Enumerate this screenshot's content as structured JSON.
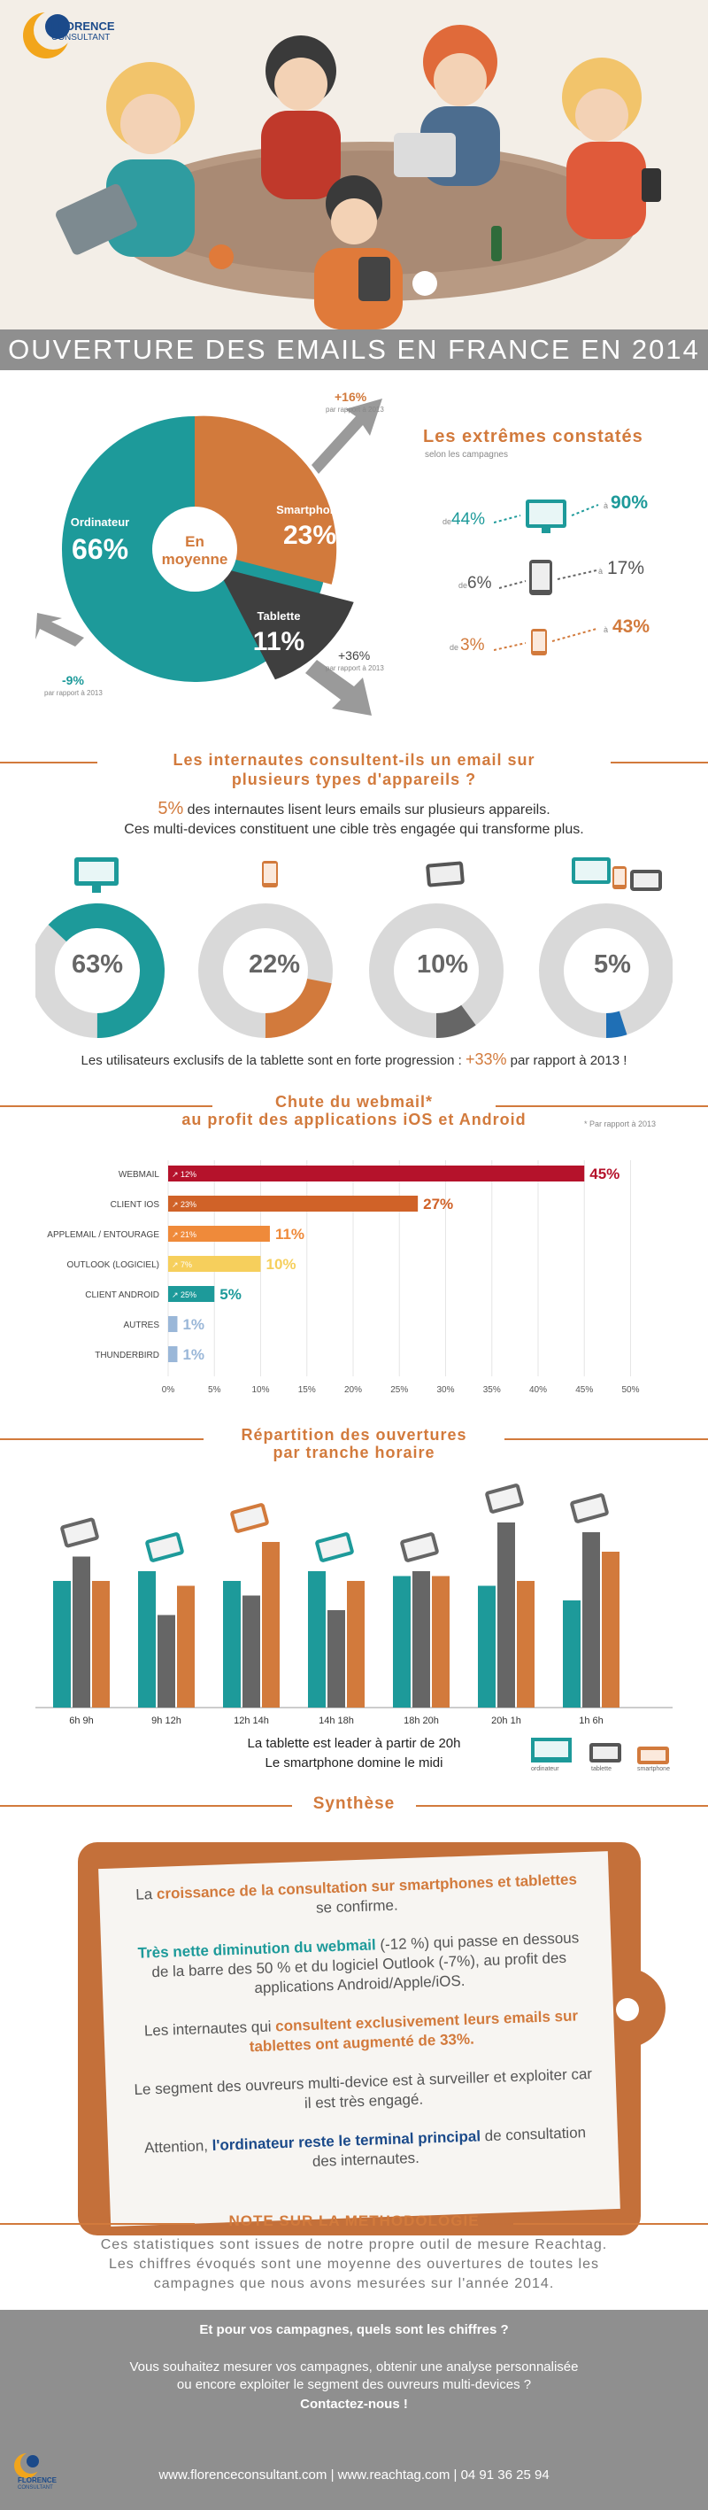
{
  "brand": {
    "name_line1": "FLORENCE",
    "name_line2": "CONSULTANT"
  },
  "title": "OUVERTURE DES EMAILS EN FRANCE EN 2014",
  "pie": {
    "center_line1": "En",
    "center_line2": "moyenne",
    "ordinateur": {
      "label": "Ordinateur",
      "value": "66%"
    },
    "smartphone": {
      "label": "Smartphone",
      "value": "23%"
    },
    "tablette": {
      "label": "Tablette",
      "value": "11%"
    },
    "smart_change": "+16%",
    "smart_note": "par rapport à 2013",
    "tab_change": "+36%",
    "tab_note": "par rapport à 2013",
    "ord_change": "-9%",
    "ord_note": "par rapport à 2013"
  },
  "extremes": {
    "title": "Les extrêmes constatés",
    "subtitle": "selon les campagnes",
    "rows": [
      {
        "from_prefix": "de",
        "from": "44%",
        "to_prefix": "à",
        "to": "90%",
        "device": "desktop-icon"
      },
      {
        "from_prefix": "de",
        "from": "6%",
        "to_prefix": "à",
        "to": "17%",
        "device": "tablet-icon"
      },
      {
        "from_prefix": "de",
        "from": "3%",
        "to_prefix": "à",
        "to": "43%",
        "device": "smartphone-icon"
      }
    ]
  },
  "multi": {
    "question_line1": "Les internautes consultent-ils un email sur",
    "question_line2": "plusieurs types d'appareils ?",
    "stat_pct": "5%",
    "stat_rest": " des internautes lisent leurs emails sur plusieurs appareils.",
    "stat_line2": "Ces multi-devices constituent une cible très engagée qui transforme plus.",
    "donuts": [
      {
        "value": "63%",
        "fraction": 0.63,
        "color": "#1d9a9a",
        "device": "desktop-icon"
      },
      {
        "value": "22%",
        "fraction": 0.22,
        "color": "#d27a3c",
        "device": "smartphone-icon"
      },
      {
        "value": "10%",
        "fraction": 0.1,
        "color": "#666666",
        "device": "tablet-icon"
      },
      {
        "value": "5%",
        "fraction": 0.05,
        "color": "#1f6fb5",
        "device": "multi-device-icon"
      }
    ],
    "tablet_note_pre": "Les utilisateurs exclusifs de la tablette sont en forte progression : ",
    "tablet_note_pct": "+33%",
    "tablet_note_post": " par rapport à 2013 !"
  },
  "webmail": {
    "title_line1": "Chute du webmail*",
    "title_line2": "au profit des applications iOS et Android",
    "footnote": "* Par rapport à 2013"
  },
  "chart_data": [
    {
      "type": "bar",
      "orientation": "horizontal",
      "categories": [
        "WEBMAIL",
        "CLIENT IOS",
        "APPLEMAIL / ENTOURAGE",
        "OUTLOOK (LOGICIEL)",
        "CLIENT ANDROID",
        "AUTRES",
        "THUNDERBIRD"
      ],
      "values": [
        45,
        27,
        11,
        10,
        5,
        1,
        1
      ],
      "value_labels": [
        "45%",
        "27%",
        "11%",
        "10%",
        "5%",
        "1%",
        "1%"
      ],
      "changes": [
        "12%",
        "23%",
        "21%",
        "7%",
        "25%",
        "",
        ""
      ],
      "colors": [
        "#b5122b",
        "#d06228",
        "#ef8a3a",
        "#f6cf5c",
        "#1d9a9a",
        "#9ab7d8",
        "#9ab7d8"
      ],
      "xlim": [
        0,
        50
      ],
      "xticks": [
        "0%",
        "5%",
        "10%",
        "15%",
        "20%",
        "25%",
        "30%",
        "35%",
        "40%",
        "45%",
        "50%"
      ]
    },
    {
      "type": "bar",
      "title_line1": "Répartition des ouvertures",
      "title_line2": "par tranche horaire",
      "categories": [
        "6h 9h",
        "9h 12h",
        "12h 14h",
        "14h 18h",
        "18h 20h",
        "20h 1h",
        "1h 6h"
      ],
      "series": [
        {
          "name": "ordinateur",
          "color": "#1d9a9a",
          "values": [
            13.0,
            14.0,
            13.0,
            14.0,
            13.5,
            12.5,
            11.0
          ]
        },
        {
          "name": "tablette",
          "color": "#666666",
          "values": [
            15.5,
            9.5,
            11.5,
            10.0,
            14.0,
            19.0,
            18.0
          ]
        },
        {
          "name": "smartphone",
          "color": "#d27a3c",
          "values": [
            13.0,
            12.5,
            17.0,
            13.0,
            13.5,
            13.0,
            16.0
          ]
        }
      ],
      "ylim": [
        0,
        20
      ],
      "notes": [
        "La tablette est leader à partir de 20h",
        "Le smartphone domine le midi"
      ]
    }
  ],
  "synthese": {
    "title": "Synthèse",
    "p1_a": "La ",
    "p1_b": "croissance de la consultation sur smartphones et tablettes",
    "p1_c": " se confirme.",
    "p2_a": "Très nette diminution du webmail",
    "p2_b": " (-12 %) qui passe en dessous de la barre des 50 % et du logiciel Outlook (-7%), au profit des applications Android/Apple/iOS.",
    "p3_a": "Les internautes qui ",
    "p3_b": "consultent exclusivement leurs emails sur tablettes ont augmenté de 33%.",
    "p4": "Le segment des ouvreurs multi-device est à surveiller et exploiter car il est très engagé.",
    "p5_a": "Attention, ",
    "p5_b": "l'ordinateur reste le terminal principal",
    "p5_c": " de consultation des internautes."
  },
  "methodo": {
    "title": "NOTE SUR LA METHODOLOGIE",
    "line1": "Ces statistiques sont issues de notre propre outil de mesure Reachtag.",
    "line2": "Les chiffres évoqués sont une moyenne des ouvertures de toutes les",
    "line3": "campagnes que nous avons mesurées sur l'année 2014."
  },
  "footer": {
    "question": "Et pour vos campagnes, quels sont les chiffres ?",
    "line1": "Vous souhaitez mesurer vos campagnes, obtenir une analyse personnalisée",
    "line2": "ou encore exploiter le segment des ouvreurs multi-devices ?",
    "cta": "Contactez-nous !",
    "contact": "www.florenceconsultant.com | www.reachtag.com | 04 91 36 25 94"
  }
}
